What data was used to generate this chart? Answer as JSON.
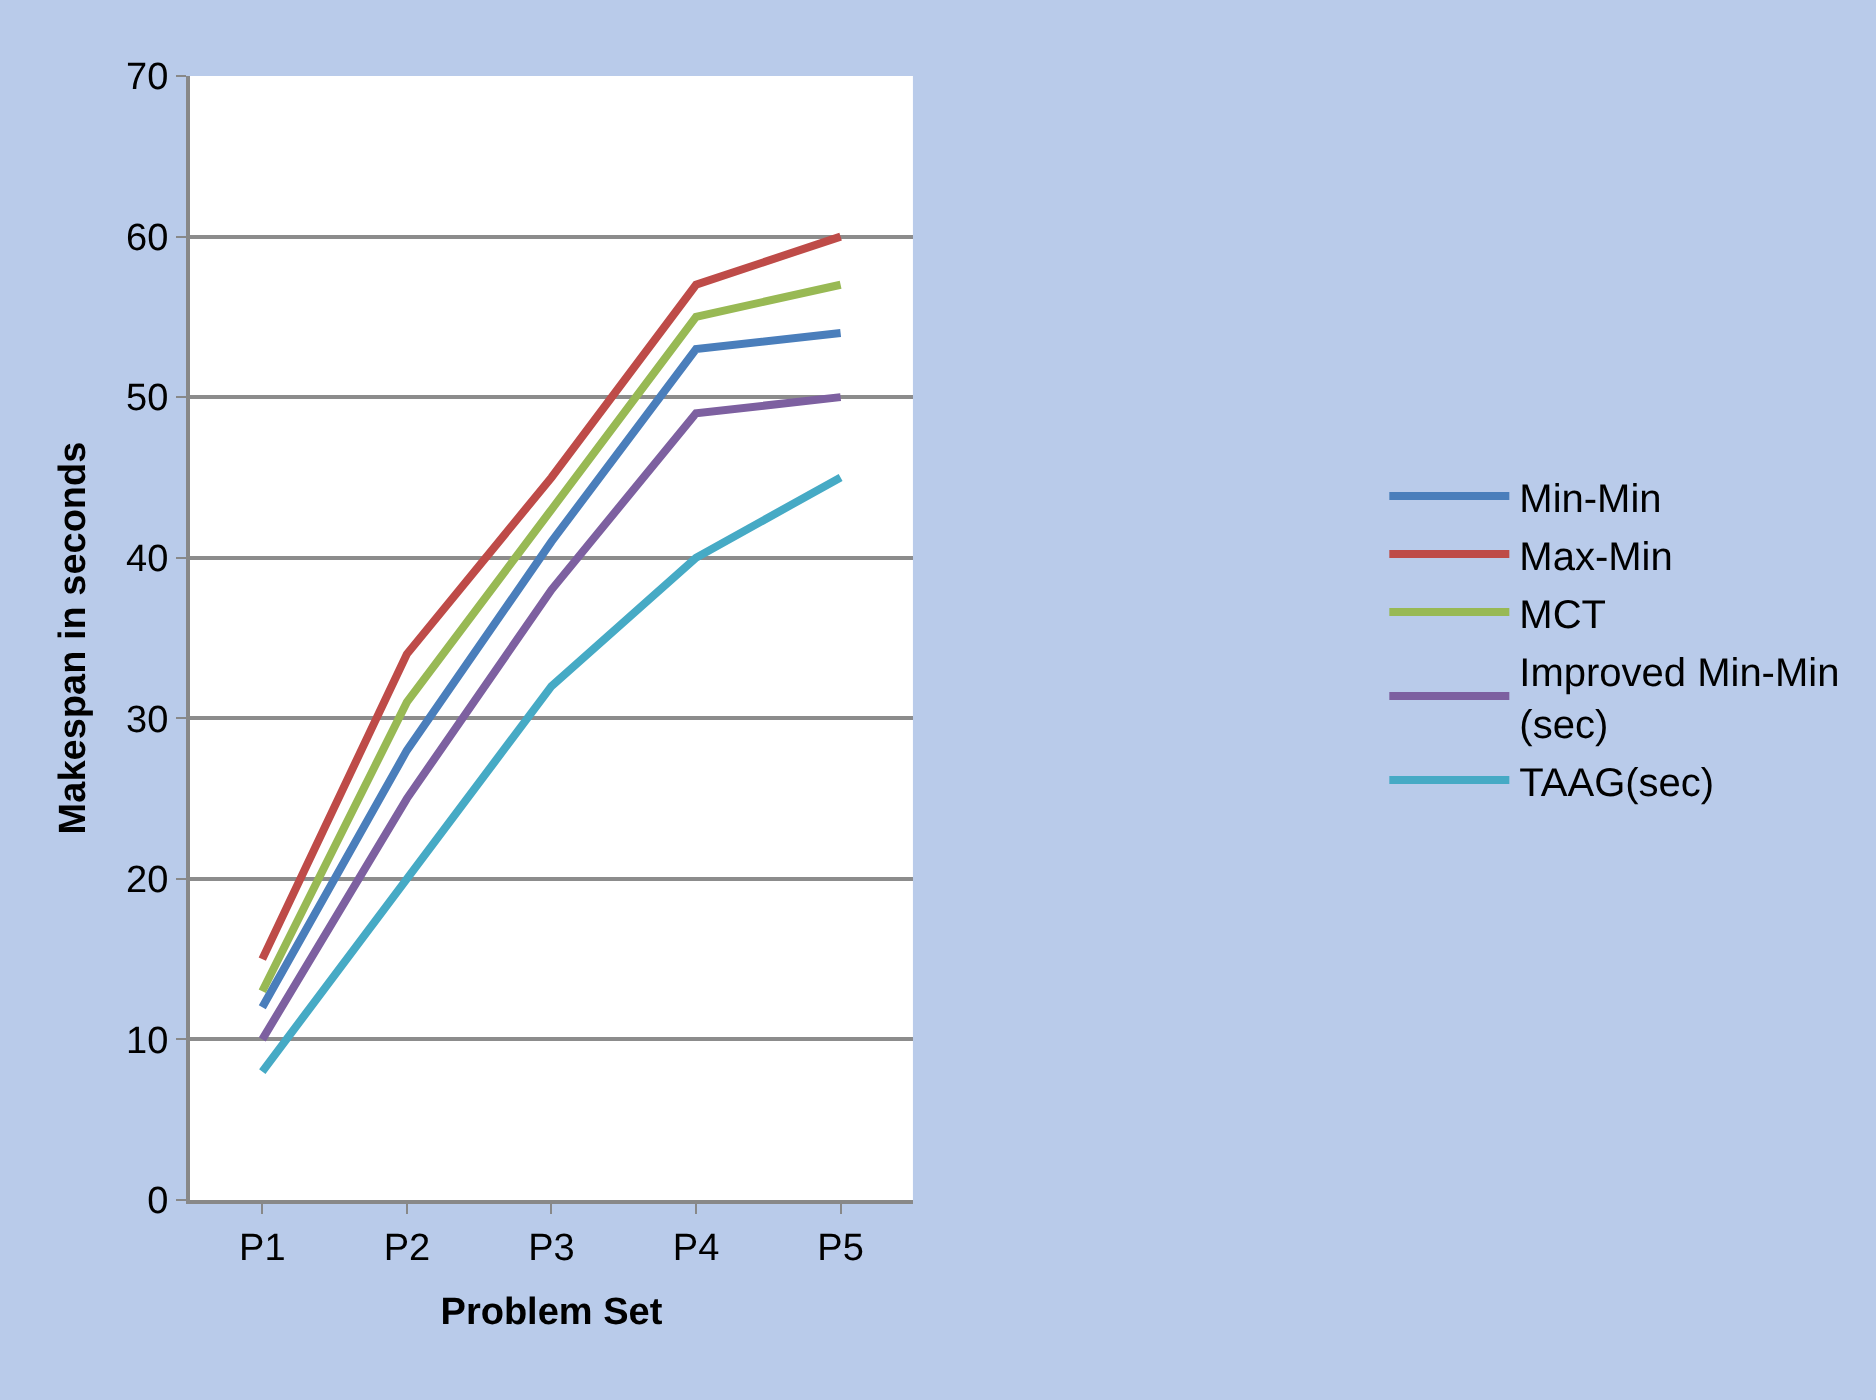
{
  "chart_data": {
    "type": "line",
    "xlabel": "Problem Set",
    "ylabel": "Makespan in seconds",
    "categories": [
      "P1",
      "P2",
      "P3",
      "P4",
      "P5"
    ],
    "series": [
      {
        "name": "Min-Min",
        "color": "#4a7ebb",
        "values": [
          12,
          28,
          41,
          53,
          54
        ]
      },
      {
        "name": "Max-Min",
        "color": "#be4b48",
        "values": [
          15,
          34,
          45,
          57,
          60
        ]
      },
      {
        "name": "MCT",
        "color": "#98b954",
        "values": [
          13,
          31,
          43,
          55,
          57
        ]
      },
      {
        "name": "Improved Min-Min (sec)",
        "color": "#7d60a0",
        "values": [
          10,
          25,
          38,
          49,
          50
        ]
      },
      {
        "name": "TAAG(sec)",
        "color": "#46aac5",
        "values": [
          8,
          20,
          32,
          40,
          45
        ]
      }
    ],
    "ylim": [
      0,
      70
    ],
    "yticks": [
      0,
      10,
      20,
      30,
      40,
      50,
      60,
      70
    ],
    "grid": "y",
    "legend": "right",
    "marker": "none",
    "line_style": "solid"
  }
}
